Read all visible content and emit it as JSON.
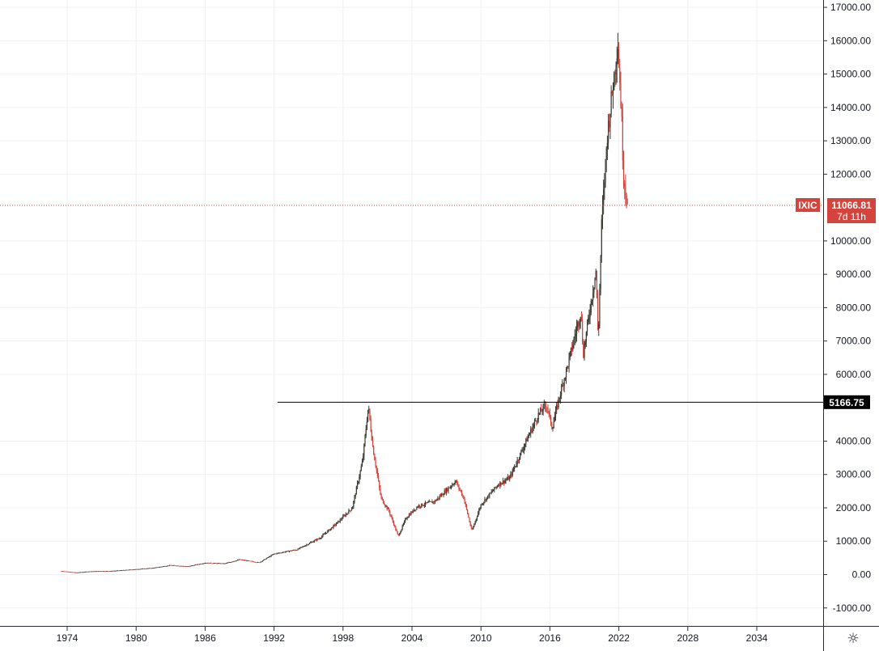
{
  "chart_data": {
    "type": "candlestick",
    "symbol": "IXIC",
    "countdown": "7d 11h",
    "last_price": "11066.81",
    "last_price_value": 11066.81,
    "horizontal_line": {
      "label": "5166.75",
      "value": 5166.75,
      "from_year": 1992.3
    },
    "ylim": [
      -1400,
      17000
    ],
    "xlim": [
      1970.3,
      2041.4
    ],
    "y_ticks": [
      "17000.00",
      "16000.00",
      "15000.00",
      "14000.00",
      "13000.00",
      "12000.00",
      "10000.00",
      "9000.00",
      "8000.00",
      "7000.00",
      "6000.00",
      "4000.00",
      "3000.00",
      "2000.00",
      "1000.00",
      "0.00",
      "-1000.00"
    ],
    "x_ticks": [
      "1974",
      "1980",
      "1986",
      "1992",
      "1998",
      "2004",
      "2010",
      "2016",
      "2022",
      "2028",
      "2034"
    ],
    "grid": true,
    "colors": {
      "up": "#3b3b32",
      "down": "#d3453c",
      "badge": "#d3453c",
      "hline_badge": "#000000"
    },
    "series": [
      {
        "x": 1973.5,
        "close": 105
      },
      {
        "x": 1974.8,
        "close": 60
      },
      {
        "x": 1976.0,
        "close": 95
      },
      {
        "x": 1978.0,
        "close": 110
      },
      {
        "x": 1980.0,
        "close": 160
      },
      {
        "x": 1981.5,
        "close": 200
      },
      {
        "x": 1983.0,
        "close": 280
      },
      {
        "x": 1984.5,
        "close": 245
      },
      {
        "x": 1986.0,
        "close": 350
      },
      {
        "x": 1987.7,
        "close": 330
      },
      {
        "x": 1989.0,
        "close": 450
      },
      {
        "x": 1990.7,
        "close": 360
      },
      {
        "x": 1992.0,
        "close": 620
      },
      {
        "x": 1994.0,
        "close": 750
      },
      {
        "x": 1996.0,
        "close": 1100
      },
      {
        "x": 1997.5,
        "close": 1550
      },
      {
        "x": 1998.8,
        "close": 2000
      },
      {
        "x": 1999.7,
        "close": 3400
      },
      {
        "x": 2000.2,
        "close": 5050
      },
      {
        "x": 2000.6,
        "close": 3800
      },
      {
        "x": 2001.3,
        "close": 2300
      },
      {
        "x": 2002.0,
        "close": 1900
      },
      {
        "x": 2002.8,
        "close": 1150
      },
      {
        "x": 2003.5,
        "close": 1700
      },
      {
        "x": 2004.5,
        "close": 2050
      },
      {
        "x": 2006.0,
        "close": 2200
      },
      {
        "x": 2007.8,
        "close": 2800
      },
      {
        "x": 2008.5,
        "close": 2300
      },
      {
        "x": 2009.2,
        "close": 1300
      },
      {
        "x": 2010.0,
        "close": 2100
      },
      {
        "x": 2011.5,
        "close": 2700
      },
      {
        "x": 2012.5,
        "close": 2900
      },
      {
        "x": 2013.8,
        "close": 3900
      },
      {
        "x": 2015.0,
        "close": 4800
      },
      {
        "x": 2015.7,
        "close": 5100
      },
      {
        "x": 2016.2,
        "close": 4400
      },
      {
        "x": 2016.8,
        "close": 5300
      },
      {
        "x": 2017.5,
        "close": 6200
      },
      {
        "x": 2018.7,
        "close": 7900
      },
      {
        "x": 2018.9,
        "close": 6600
      },
      {
        "x": 2019.5,
        "close": 8000
      },
      {
        "x": 2020.0,
        "close": 9100
      },
      {
        "x": 2020.2,
        "close": 7000
      },
      {
        "x": 2020.5,
        "close": 10500
      },
      {
        "x": 2021.0,
        "close": 13200
      },
      {
        "x": 2021.5,
        "close": 14700
      },
      {
        "x": 2021.9,
        "close": 16000
      },
      {
        "x": 2022.2,
        "close": 14000
      },
      {
        "x": 2022.4,
        "close": 12000
      },
      {
        "x": 2022.6,
        "close": 11500
      },
      {
        "x": 2022.75,
        "close": 11066
      }
    ]
  }
}
